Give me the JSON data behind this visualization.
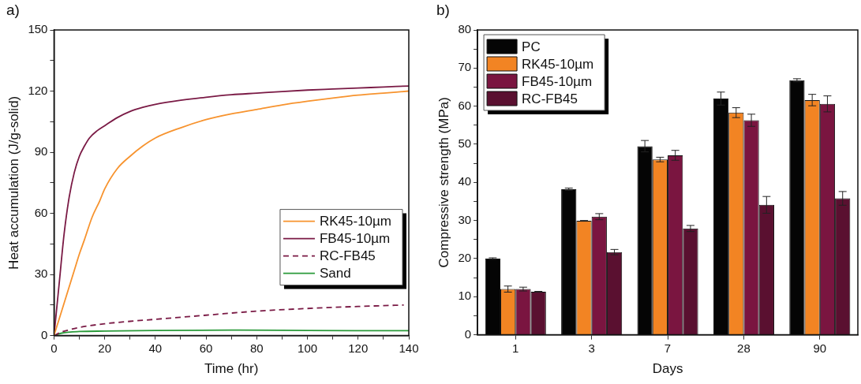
{
  "chart_data": [
    {
      "type": "line",
      "title": "a)",
      "xlabel": "Time (hr)",
      "ylabel": "Heat accumulation (J/g-solid)",
      "xlim": [
        0,
        140
      ],
      "ylim": [
        0,
        150
      ],
      "xticks": [
        0,
        {
          "value": 10,
          "label": null
        },
        20,
        {
          "value": 30,
          "label": null
        },
        40,
        {
          "value": 50,
          "label": null
        },
        60,
        {
          "value": 70,
          "label": null
        },
        80,
        {
          "value": 90,
          "label": null
        },
        100,
        {
          "value": 110,
          "label": null
        },
        120,
        {
          "value": 130,
          "label": null
        },
        140
      ],
      "yticks": [
        0,
        {
          "value": 15,
          "label": null
        },
        30,
        {
          "value": 45,
          "label": null
        },
        60,
        {
          "value": 75,
          "label": null
        },
        90,
        {
          "value": 105,
          "label": null
        },
        120,
        {
          "value": 135,
          "label": null
        },
        150
      ],
      "grid": false,
      "legend": "bottom right",
      "marker": "none",
      "series": [
        {
          "name": "RK45-10µm",
          "color": "#f7932e",
          "x": [
            0,
            2,
            5,
            8,
            10,
            12,
            15,
            18,
            20,
            25,
            30,
            35,
            40,
            50,
            60,
            70,
            80,
            90,
            100,
            110,
            120,
            130,
            140
          ],
          "values": [
            0,
            8,
            20,
            32,
            40,
            47,
            58,
            66,
            72,
            82,
            88,
            93,
            97,
            102,
            106,
            108.8,
            111,
            113.2,
            115,
            116.6,
            118,
            119,
            120
          ]
        },
        {
          "name": "FB45-10µm",
          "color": "#7a1a45",
          "x": [
            0,
            2,
            4,
            6,
            8,
            10,
            12,
            14,
            17,
            20,
            25,
            30,
            35,
            40,
            50,
            60,
            70,
            80,
            90,
            100,
            110,
            120,
            130,
            140
          ],
          "values": [
            0,
            25,
            50,
            68,
            80,
            88,
            93,
            97,
            100.5,
            103,
            107,
            110,
            112,
            113.5,
            115.5,
            117,
            118.2,
            119,
            119.8,
            120.5,
            121,
            121.5,
            122,
            122.5
          ]
        },
        {
          "name": "RC-FB45",
          "color": "#7a1a45",
          "line_style": "dashed",
          "x": [
            0,
            3,
            5,
            10,
            20,
            30,
            40,
            60,
            80,
            100,
            120,
            138
          ],
          "values": [
            0,
            1.8,
            2.5,
            4,
            5.8,
            7,
            8,
            10,
            12,
            13.3,
            14.3,
            15
          ]
        },
        {
          "name": "Sand",
          "color": "#2a9a3a",
          "x": [
            0,
            3,
            10,
            20,
            40,
            70,
            100,
            140
          ],
          "values": [
            0,
            1.2,
            2,
            2.2,
            2.5,
            2.7,
            2.5,
            2.4
          ]
        }
      ]
    },
    {
      "type": "bar",
      "title": "b)",
      "xlabel": "Days",
      "ylabel": "Compressive strength (MPa)",
      "categories": [
        "1",
        "3",
        "7",
        "28",
        "90"
      ],
      "ylim": [
        0,
        80
      ],
      "yticks": [
        0,
        {
          "value": 5,
          "label": null
        },
        10,
        {
          "value": 15,
          "label": null
        },
        20,
        {
          "value": 25,
          "label": null
        },
        30,
        {
          "value": 35,
          "label": null
        },
        40,
        {
          "value": 45,
          "label": null
        },
        50,
        {
          "value": 55,
          "label": null
        },
        60,
        {
          "value": 65,
          "label": null
        },
        70,
        {
          "value": 75,
          "label": null
        },
        80
      ],
      "grid": false,
      "legend": "top left",
      "series": [
        {
          "name": "PC",
          "color": "#050505",
          "values": [
            20,
            38.2,
            49.5,
            62,
            66.8
          ],
          "errors": [
            0.2,
            0.3,
            1.5,
            1.7,
            0.4
          ]
        },
        {
          "name": "RK45-10µm",
          "color": "#f28423",
          "values": [
            12,
            29.9,
            46,
            58.3,
            61.6
          ],
          "errors": [
            0.8,
            0.1,
            0.6,
            1.3,
            1.5
          ]
        },
        {
          "name": "FB45-10µm",
          "color": "#7a1540",
          "values": [
            12,
            31,
            47.1,
            56.3,
            60.6
          ],
          "errors": [
            0.5,
            0.8,
            1.3,
            1.6,
            2.1
          ]
        },
        {
          "name": "RC-FB45",
          "color": "#5a1030",
          "values": [
            11.3,
            21.7,
            27.9,
            34.1,
            35.8
          ],
          "errors": [
            0.1,
            0.7,
            0.8,
            2.2,
            1.8
          ]
        }
      ]
    }
  ]
}
